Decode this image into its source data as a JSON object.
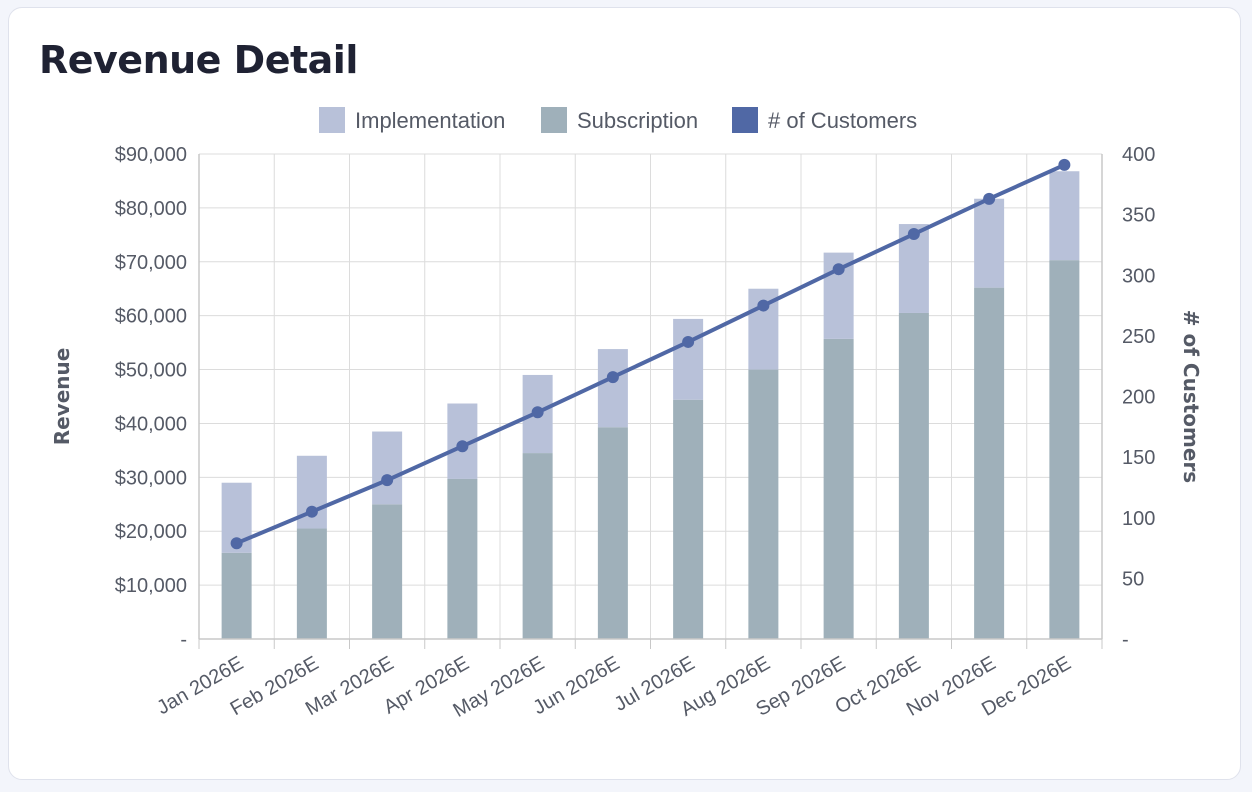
{
  "card": {
    "title": "Revenue Detail"
  },
  "colors": {
    "implementation": "#b8c1d9",
    "subscription": "#9fb0ba",
    "customers": "#5068a5",
    "grid": "#dcdcdc",
    "axis": "#c8c8c8"
  },
  "chart_data": {
    "type": "bar",
    "stacked": true,
    "categories": [
      "Jan 2026E",
      "Feb 2026E",
      "Mar 2026E",
      "Apr 2026E",
      "May 2026E",
      "Jun 2026E",
      "Jul 2026E",
      "Aug 2026E",
      "Sep 2026E",
      "Oct 2026E",
      "Nov 2026E",
      "Dec 2026E"
    ],
    "series": [
      {
        "name": "Implementation",
        "type": "bar",
        "axis": "left",
        "values": [
          13000,
          13500,
          13500,
          14000,
          14500,
          14500,
          15000,
          15000,
          16000,
          16500,
          16500,
          16500
        ]
      },
      {
        "name": "Subscription",
        "type": "bar",
        "axis": "left",
        "values": [
          16000,
          20500,
          25000,
          29700,
          34500,
          39300,
          44400,
          50000,
          55700,
          60500,
          65200,
          70300
        ]
      },
      {
        "name": "# of Customers",
        "type": "line",
        "axis": "right",
        "values": [
          79,
          105,
          131,
          159,
          187,
          216,
          245,
          275,
          305,
          334,
          363,
          391
        ]
      }
    ],
    "ylabel": "Revenue",
    "y2label": "# of Customers",
    "ylim": [
      0,
      90000
    ],
    "y2lim": [
      0,
      400
    ],
    "yticks": [
      "-",
      "$10,000",
      "$20,000",
      "$30,000",
      "$40,000",
      "$50,000",
      "$60,000",
      "$70,000",
      "$80,000",
      "$90,000"
    ],
    "y2ticks": [
      "-",
      "50",
      "100",
      "150",
      "200",
      "250",
      "300",
      "350",
      "400"
    ],
    "legend_position": "top-center",
    "grid": true
  }
}
